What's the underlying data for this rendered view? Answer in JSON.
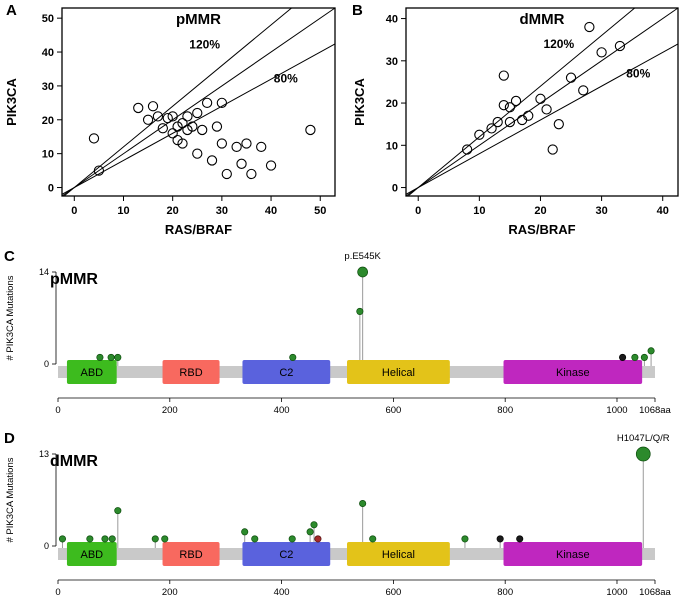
{
  "figure": {
    "background": "#ffffff"
  },
  "colors": {
    "dot_green": "#2c8a2c",
    "dot_black": "#1a1a1a",
    "dot_red": "#a52a2a",
    "backbone_gray": "#c9c9c9"
  },
  "chart_data": [
    {
      "id": "A",
      "type": "scatter",
      "panel_letter": "A",
      "title": "pMMR",
      "xlabel": "RAS/BRAF",
      "ylabel": "PIK3CA",
      "xlim": [
        -2.5,
        53
      ],
      "ylim": [
        -2.5,
        53
      ],
      "xticks": [
        0,
        10,
        20,
        30,
        40,
        50
      ],
      "yticks": [
        0,
        10,
        20,
        30,
        40,
        50
      ],
      "ref_lines": [
        {
          "slope": 1.2,
          "label": "120%",
          "label_at": [
            26.5,
            41
          ]
        },
        {
          "slope": 1.0
        },
        {
          "slope": 0.8,
          "label": "80%",
          "label_at": [
            43,
            31
          ]
        }
      ],
      "points": [
        [
          4,
          14.5
        ],
        [
          5,
          5
        ],
        [
          13,
          23.5
        ],
        [
          15,
          20
        ],
        [
          16,
          24
        ],
        [
          17,
          21
        ],
        [
          18,
          17.5
        ],
        [
          19,
          20.5
        ],
        [
          20,
          21
        ],
        [
          20,
          16
        ],
        [
          21,
          18
        ],
        [
          21,
          14
        ],
        [
          22,
          19
        ],
        [
          22,
          13
        ],
        [
          23,
          21
        ],
        [
          23,
          17
        ],
        [
          24,
          18
        ],
        [
          25,
          22
        ],
        [
          25,
          10
        ],
        [
          26,
          17
        ],
        [
          27,
          25
        ],
        [
          28,
          8
        ],
        [
          29,
          18
        ],
        [
          30,
          25
        ],
        [
          30,
          13
        ],
        [
          31,
          4
        ],
        [
          33,
          12
        ],
        [
          34,
          7
        ],
        [
          35,
          13
        ],
        [
          36,
          4
        ],
        [
          38,
          12
        ],
        [
          40,
          6.5
        ],
        [
          48,
          17
        ]
      ]
    },
    {
      "id": "B",
      "type": "scatter",
      "panel_letter": "B",
      "title": "dMMR",
      "xlabel": "RAS/BRAF",
      "ylabel": "PIK3CA",
      "xlim": [
        -2,
        42.5
      ],
      "ylim": [
        -2,
        42.5
      ],
      "xticks": [
        0,
        10,
        20,
        30,
        40
      ],
      "yticks": [
        0,
        10,
        20,
        30,
        40
      ],
      "ref_lines": [
        {
          "slope": 1.2,
          "label": "120%",
          "label_at": [
            23,
            33
          ]
        },
        {
          "slope": 1.0
        },
        {
          "slope": 0.8,
          "label": "80%",
          "label_at": [
            36,
            26
          ]
        }
      ],
      "points": [
        [
          8,
          9
        ],
        [
          10,
          12.5
        ],
        [
          12,
          14
        ],
        [
          13,
          15.5
        ],
        [
          14,
          26.5
        ],
        [
          14,
          19.5
        ],
        [
          15,
          19
        ],
        [
          15,
          15.5
        ],
        [
          16,
          20.5
        ],
        [
          17,
          16
        ],
        [
          18,
          17
        ],
        [
          20,
          21
        ],
        [
          21,
          18.5
        ],
        [
          22,
          9
        ],
        [
          23,
          15
        ],
        [
          25,
          26
        ],
        [
          27,
          23
        ],
        [
          28,
          38
        ],
        [
          30,
          32
        ],
        [
          33,
          33.5
        ]
      ]
    },
    {
      "id": "C",
      "type": "lollipop",
      "panel_letter": "C",
      "title": "pMMR",
      "ylabel": "# PIK3CA Mutations",
      "ymax": 14,
      "yticks": [
        0,
        14
      ],
      "protein_length": 1068,
      "xticks": [
        0,
        200,
        400,
        600,
        800,
        1000
      ],
      "x_end_label": "1068aa",
      "domains": [
        {
          "name": "ABD",
          "start": 16,
          "end": 105,
          "color": "#3dbb1e"
        },
        {
          "name": "RBD",
          "start": 187,
          "end": 289,
          "color": "#f8695f"
        },
        {
          "name": "C2",
          "start": 330,
          "end": 487,
          "color": "#5a62dd"
        },
        {
          "name": "Helical",
          "start": 517,
          "end": 701,
          "color": "#e3c319"
        },
        {
          "name": "Kinase",
          "start": 797,
          "end": 1045,
          "color": "#bf27bf"
        }
      ],
      "annotation": {
        "text": "p.E545K",
        "x": 545
      },
      "mutations": [
        {
          "x": 75,
          "count": 1
        },
        {
          "x": 95,
          "count": 1
        },
        {
          "x": 107,
          "count": 1
        },
        {
          "x": 420,
          "count": 1
        },
        {
          "x": 540,
          "count": 8
        },
        {
          "x": 545,
          "count": 14,
          "r": 5
        },
        {
          "x": 1010,
          "count": 1,
          "color": "black"
        },
        {
          "x": 1032,
          "count": 1
        },
        {
          "x": 1049,
          "count": 1
        },
        {
          "x": 1061,
          "count": 2
        }
      ]
    },
    {
      "id": "D",
      "type": "lollipop",
      "panel_letter": "D",
      "title": "dMMR",
      "ylabel": "# PIK3CA Mutations",
      "ymax": 13,
      "yticks": [
        0,
        13
      ],
      "protein_length": 1068,
      "xticks": [
        0,
        200,
        400,
        600,
        800,
        1000
      ],
      "x_end_label": "1068aa",
      "domains": [
        {
          "name": "ABD",
          "start": 16,
          "end": 105,
          "color": "#3dbb1e"
        },
        {
          "name": "RBD",
          "start": 187,
          "end": 289,
          "color": "#f8695f"
        },
        {
          "name": "C2",
          "start": 330,
          "end": 487,
          "color": "#5a62dd"
        },
        {
          "name": "Helical",
          "start": 517,
          "end": 701,
          "color": "#e3c319"
        },
        {
          "name": "Kinase",
          "start": 797,
          "end": 1045,
          "color": "#bf27bf"
        }
      ],
      "annotation": {
        "text": "H1047L/Q/R",
        "x": 1047
      },
      "mutations": [
        {
          "x": 8,
          "count": 1
        },
        {
          "x": 57,
          "count": 1
        },
        {
          "x": 84,
          "count": 1
        },
        {
          "x": 97,
          "count": 1
        },
        {
          "x": 107,
          "count": 5
        },
        {
          "x": 174,
          "count": 1
        },
        {
          "x": 191,
          "count": 1
        },
        {
          "x": 334,
          "count": 2
        },
        {
          "x": 352,
          "count": 1
        },
        {
          "x": 419,
          "count": 1
        },
        {
          "x": 451,
          "count": 2
        },
        {
          "x": 458,
          "count": 3
        },
        {
          "x": 465,
          "count": 1,
          "color": "red"
        },
        {
          "x": 545,
          "count": 6
        },
        {
          "x": 563,
          "count": 1
        },
        {
          "x": 728,
          "count": 1
        },
        {
          "x": 791,
          "count": 1,
          "color": "black"
        },
        {
          "x": 826,
          "count": 1,
          "color": "black"
        },
        {
          "x": 1047,
          "count": 13,
          "r": 7
        }
      ]
    }
  ]
}
